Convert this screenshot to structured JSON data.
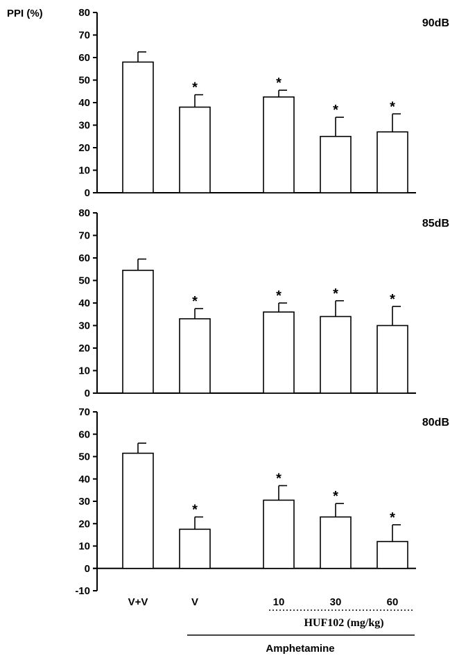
{
  "ylabel": "PPI (%)",
  "chart_data": [
    {
      "type": "bar",
      "panel_label": "90dB",
      "ylim": [
        0,
        80
      ],
      "yticks": [
        0,
        10,
        20,
        30,
        40,
        50,
        60,
        70,
        80
      ],
      "categories": [
        "V+V",
        "V",
        "10",
        "30",
        "60"
      ],
      "values": [
        58,
        38,
        42.5,
        25,
        27
      ],
      "errors": [
        4.5,
        5.5,
        3,
        8.5,
        8
      ],
      "significance": [
        "",
        "*",
        "*",
        "*",
        "*"
      ]
    },
    {
      "type": "bar",
      "panel_label": "85dB",
      "ylim": [
        0,
        80
      ],
      "yticks": [
        0,
        10,
        20,
        30,
        40,
        50,
        60,
        70,
        80
      ],
      "categories": [
        "V+V",
        "V",
        "10",
        "30",
        "60"
      ],
      "values": [
        54.5,
        33,
        36,
        34,
        30
      ],
      "errors": [
        5,
        4.5,
        4,
        7,
        8.5
      ],
      "significance": [
        "",
        "*",
        "*",
        "*",
        "*"
      ]
    },
    {
      "type": "bar",
      "panel_label": "80dB",
      "ylim": [
        -10,
        70
      ],
      "yticks": [
        -10,
        0,
        10,
        20,
        30,
        40,
        50,
        60,
        70
      ],
      "categories": [
        "V+V",
        "V",
        "10",
        "30",
        "60"
      ],
      "values": [
        51.5,
        17.5,
        30.5,
        23,
        12
      ],
      "errors": [
        4.5,
        5.5,
        6.5,
        6,
        7.5
      ],
      "significance": [
        "",
        "*",
        "*",
        "*",
        "*"
      ]
    }
  ],
  "x_axis": {
    "dose_group_label": "HUF102 (mg/kg)",
    "treatment_label": "Amphetamine"
  }
}
